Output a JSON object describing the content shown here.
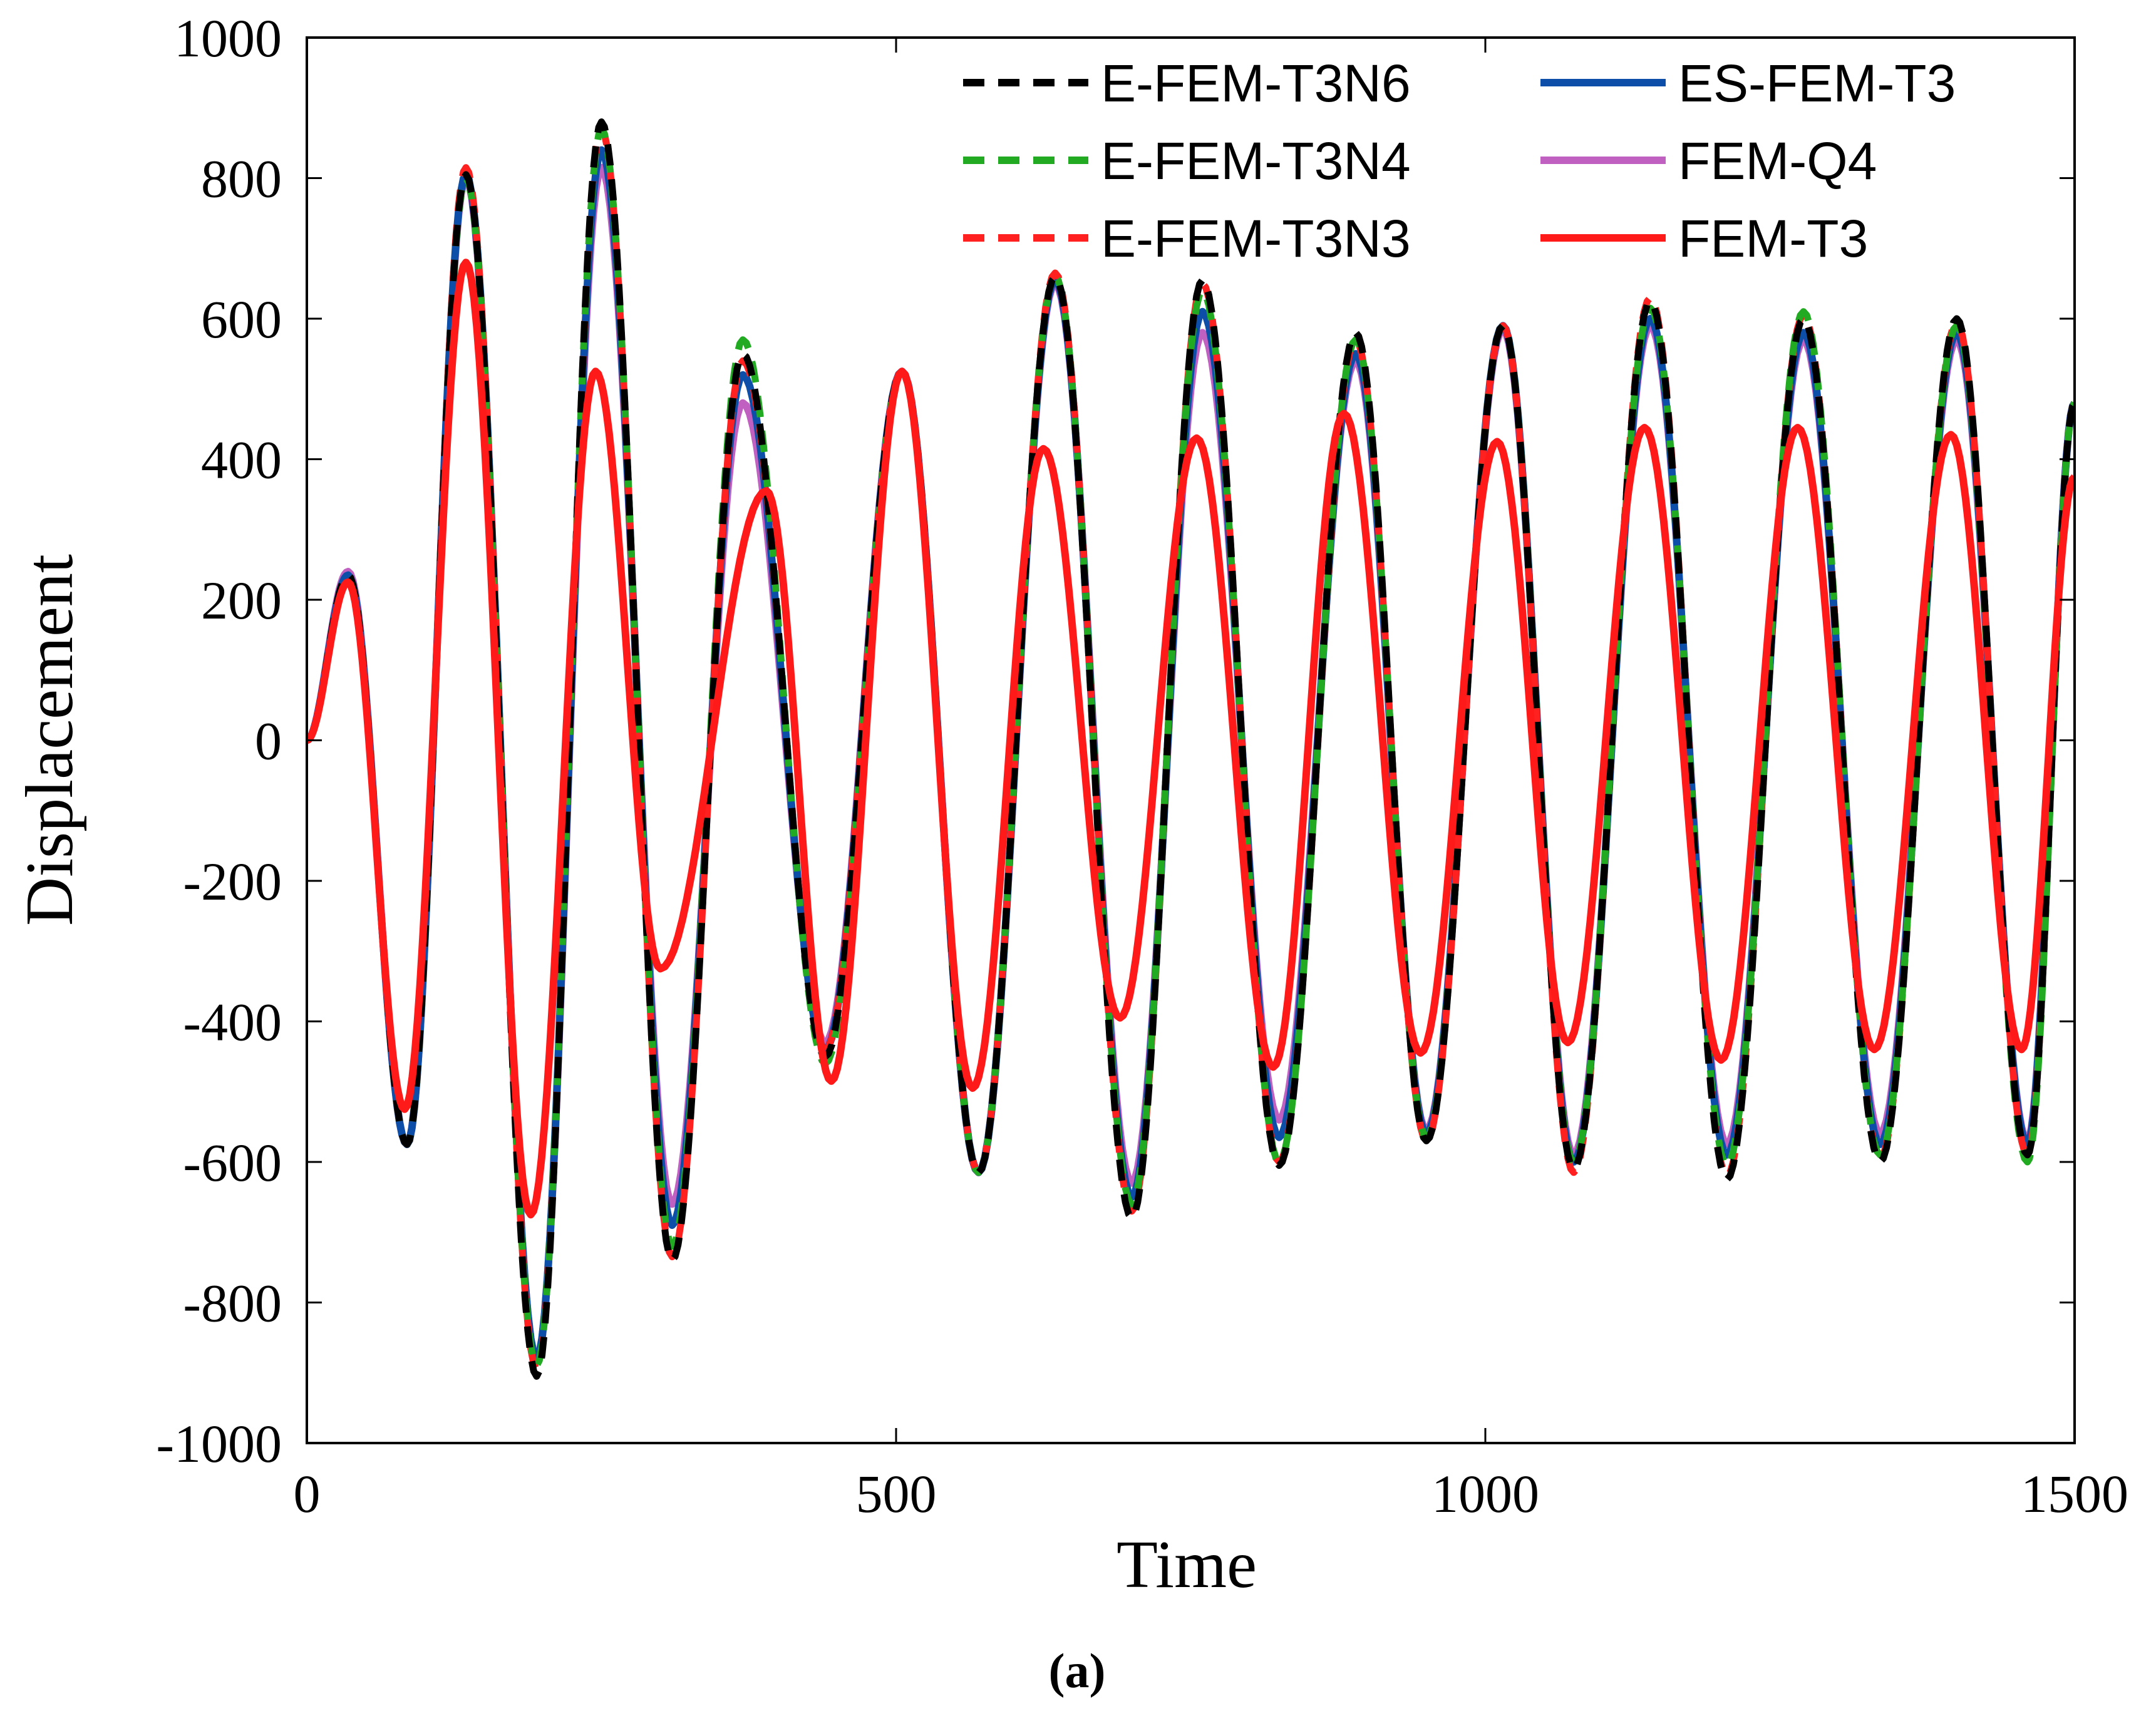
{
  "chart_data": {
    "type": "line",
    "title": "",
    "xlabel": "Time",
    "ylabel": "Displacement",
    "caption": "(a)",
    "xlim": [
      0,
      1500
    ],
    "ylim": [
      -1000,
      1000
    ],
    "x_ticks": [
      0,
      500,
      1000,
      1500
    ],
    "y_ticks": [
      -1000,
      -800,
      -600,
      -400,
      -200,
      0,
      200,
      400,
      600,
      800,
      1000
    ],
    "grid": false,
    "legend_position": "top-right",
    "series": [
      {
        "name": "E-FEM-T3N6",
        "color": "#000000",
        "dash": true,
        "x": [
          0,
          35,
          85,
          135,
          195,
          250,
          310,
          370,
          440,
          505,
          570,
          635,
          700,
          760,
          825,
          890,
          950,
          1015,
          1075,
          1140,
          1205,
          1270,
          1335,
          1400,
          1460,
          1500
        ],
        "y": [
          0,
          235,
          -575,
          805,
          -905,
          880,
          -740,
          550,
          -450,
          525,
          -615,
          660,
          -680,
          655,
          -605,
          580,
          -570,
          590,
          -610,
          625,
          -625,
          600,
          -600,
          600,
          -590,
          480
        ]
      },
      {
        "name": "E-FEM-T3N4",
        "color": "#22aa22",
        "dash": true,
        "x": [
          0,
          35,
          85,
          135,
          195,
          250,
          310,
          370,
          440,
          505,
          570,
          635,
          700,
          760,
          825,
          890,
          950,
          1015,
          1075,
          1140,
          1205,
          1270,
          1335,
          1400,
          1460,
          1500
        ],
        "y": [
          0,
          235,
          -575,
          800,
          -890,
          870,
          -720,
          570,
          -460,
          525,
          -615,
          660,
          -660,
          640,
          -600,
          570,
          -565,
          590,
          -600,
          615,
          -605,
          610,
          -590,
          590,
          -600,
          480
        ]
      },
      {
        "name": "E-FEM-T3N3",
        "color": "#ff2020",
        "dash": true,
        "x": [
          0,
          35,
          85,
          135,
          195,
          250,
          310,
          370,
          440,
          505,
          570,
          635,
          700,
          760,
          825,
          890,
          950,
          1015,
          1075,
          1140,
          1205,
          1270,
          1335,
          1400,
          1460,
          1500
        ],
        "y": [
          0,
          235,
          -575,
          815,
          -895,
          870,
          -735,
          540,
          -440,
          525,
          -615,
          665,
          -670,
          650,
          -600,
          570,
          -570,
          590,
          -615,
          630,
          -620,
          605,
          -595,
          595,
          -590,
          480
        ]
      },
      {
        "name": "ES-FEM-T3",
        "color": "#0d4fa8",
        "dash": false,
        "x": [
          0,
          35,
          85,
          135,
          195,
          250,
          310,
          370,
          440,
          505,
          570,
          635,
          700,
          760,
          825,
          890,
          950,
          1015,
          1075,
          1140,
          1205,
          1270,
          1335,
          1400,
          1460,
          1500
        ],
        "y": [
          0,
          235,
          -575,
          805,
          -880,
          840,
          -690,
          520,
          -440,
          525,
          -615,
          655,
          -650,
          610,
          -565,
          550,
          -560,
          590,
          -600,
          600,
          -590,
          580,
          -575,
          580,
          -575,
          480
        ]
      },
      {
        "name": "FEM-Q4",
        "color": "#c060c0",
        "dash": false,
        "x": [
          0,
          35,
          85,
          135,
          195,
          250,
          310,
          370,
          440,
          505,
          570,
          635,
          700,
          760,
          825,
          890,
          950,
          1015,
          1075,
          1140,
          1205,
          1270,
          1335,
          1400,
          1460,
          1500
        ],
        "y": [
          0,
          240,
          -575,
          800,
          -880,
          815,
          -660,
          480,
          -430,
          525,
          -615,
          650,
          -630,
          580,
          -540,
          540,
          -555,
          585,
          -590,
          590,
          -575,
          570,
          -560,
          570,
          -570,
          480
        ]
      },
      {
        "name": "FEM-T3",
        "color": "#ff1a1a",
        "dash": false,
        "x": [
          0,
          35,
          83,
          135,
          190,
          245,
          300,
          390,
          445,
          505,
          565,
          625,
          690,
          755,
          820,
          880,
          945,
          1010,
          1070,
          1135,
          1200,
          1265,
          1330,
          1395,
          1455,
          1500
        ],
        "y": [
          0,
          225,
          -525,
          680,
          -675,
          525,
          -325,
          355,
          -485,
          525,
          -495,
          415,
          -395,
          430,
          -465,
          465,
          -445,
          425,
          -430,
          445,
          -455,
          445,
          -440,
          435,
          -440,
          375
        ]
      }
    ]
  }
}
